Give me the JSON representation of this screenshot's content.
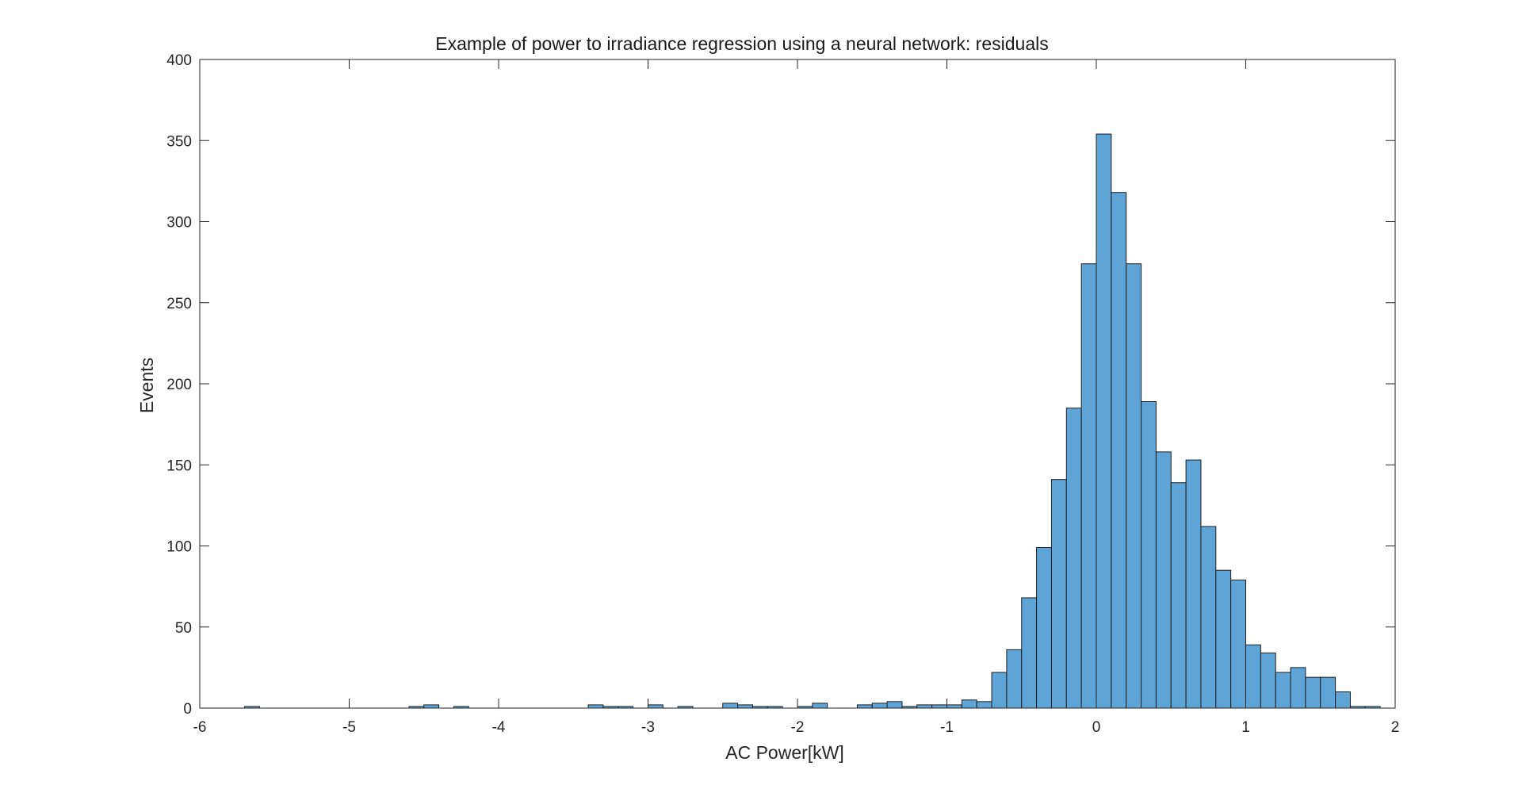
{
  "chart_data": {
    "type": "bar",
    "title": "Example of power to irradiance regression using a neural network: residuals",
    "xlabel": "AC Power[kW]",
    "ylabel": "Events",
    "xlim": [
      -6,
      2
    ],
    "ylim": [
      0,
      400
    ],
    "xticks": [
      -6,
      -5,
      -4,
      -3,
      -2,
      -1,
      0,
      1,
      2
    ],
    "yticks": [
      0,
      50,
      100,
      150,
      200,
      250,
      300,
      350,
      400
    ],
    "xtick_labels": [
      "-6",
      "-5",
      "-4",
      "-3",
      "-2",
      "-1",
      "0",
      "1",
      "2"
    ],
    "ytick_labels": [
      "0",
      "50",
      "100",
      "150",
      "200",
      "250",
      "300",
      "350",
      "400"
    ],
    "grid": false,
    "bar_color": "#5fa4d6",
    "bin_width": 0.1,
    "bin_edges_start": -5.7,
    "values": [
      1,
      0,
      0,
      0,
      0,
      0,
      0,
      0,
      0,
      0,
      0,
      1,
      2,
      0,
      1,
      0,
      0,
      0,
      0,
      0,
      0,
      0,
      0,
      2,
      1,
      1,
      0,
      2,
      0,
      1,
      0,
      0,
      3,
      2,
      1,
      1,
      0,
      1,
      3,
      0,
      0,
      2,
      3,
      4,
      1,
      2,
      2,
      2,
      5,
      4,
      22,
      36,
      68,
      99,
      141,
      185,
      274,
      354,
      318,
      274,
      189,
      158,
      139,
      153,
      112,
      85,
      79,
      39,
      34,
      22,
      25,
      19,
      19,
      10,
      1,
      1
    ]
  }
}
